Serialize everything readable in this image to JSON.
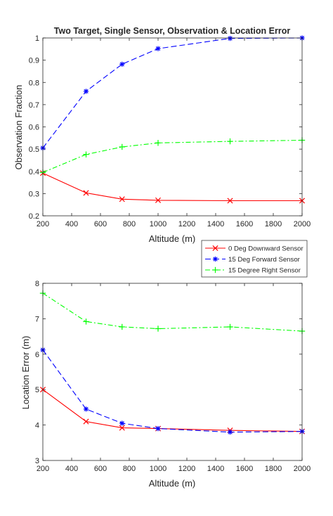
{
  "chart_data": [
    {
      "type": "line",
      "title": "Two Target, Single Sensor, Observation & Location Error",
      "xlabel": "Altitude (m)",
      "ylabel": "Observation Fraction",
      "xlim": [
        200,
        2000
      ],
      "ylim": [
        0.2,
        1.0
      ],
      "xticks": [
        200,
        400,
        600,
        800,
        1000,
        1200,
        1400,
        1600,
        1800,
        2000
      ],
      "yticks": [
        0.2,
        0.3,
        0.4,
        0.5,
        0.6,
        0.7,
        0.8,
        0.9,
        1.0
      ],
      "ytick_labels": [
        "0.2",
        "0.3",
        "0.4",
        "0.5",
        "0.6",
        "0.7",
        "0.8",
        "0.9",
        "1"
      ],
      "grid": false,
      "series": [
        {
          "name": "0 Deg Downward Sensor",
          "color": "#ff0000",
          "dash": "solid",
          "marker": "x",
          "x": [
            200,
            500,
            750,
            1000,
            1500,
            2000
          ],
          "y": [
            0.392,
            0.303,
            0.275,
            0.27,
            0.268,
            0.268
          ]
        },
        {
          "name": "15 Deg Forward Sensor",
          "color": "#0000ff",
          "dash": "dashed",
          "marker": "star",
          "x": [
            200,
            500,
            750,
            1000,
            1500,
            2000
          ],
          "y": [
            0.505,
            0.76,
            0.882,
            0.952,
            0.998,
            1.0
          ]
        },
        {
          "name": "15 Degree Right Sensor",
          "color": "#00ff00",
          "dash": "dashdot",
          "marker": "plus",
          "x": [
            200,
            500,
            750,
            1000,
            1500,
            2000
          ],
          "y": [
            0.395,
            0.476,
            0.51,
            0.528,
            0.535,
            0.54
          ]
        }
      ],
      "legend_position": "below-right"
    },
    {
      "type": "line",
      "title": "",
      "xlabel": "Altitude (m)",
      "ylabel": "Location Error (m)",
      "xlim": [
        200,
        2000
      ],
      "ylim": [
        3,
        8
      ],
      "xticks": [
        200,
        400,
        600,
        800,
        1000,
        1200,
        1400,
        1600,
        1800,
        2000
      ],
      "yticks": [
        3,
        4,
        5,
        6,
        7,
        8
      ],
      "ytick_labels": [
        "3",
        "4",
        "5",
        "6",
        "7",
        "8"
      ],
      "grid": false,
      "series": [
        {
          "name": "0 Deg Downward Sensor",
          "color": "#ff0000",
          "dash": "solid",
          "marker": "x",
          "x": [
            200,
            500,
            750,
            1000,
            1500,
            2000
          ],
          "y": [
            5.0,
            4.1,
            3.92,
            3.9,
            3.85,
            3.82
          ]
        },
        {
          "name": "15 Deg Forward Sensor",
          "color": "#0000ff",
          "dash": "dashed",
          "marker": "star",
          "x": [
            200,
            500,
            750,
            1000,
            1500,
            2000
          ],
          "y": [
            6.12,
            4.45,
            4.05,
            3.9,
            3.8,
            3.82
          ]
        },
        {
          "name": "15 Degree Right Sensor",
          "color": "#00ff00",
          "dash": "dashdot",
          "marker": "plus",
          "x": [
            200,
            500,
            750,
            1000,
            1500,
            2000
          ],
          "y": [
            7.72,
            6.92,
            6.77,
            6.72,
            6.77,
            6.65
          ]
        }
      ]
    }
  ]
}
